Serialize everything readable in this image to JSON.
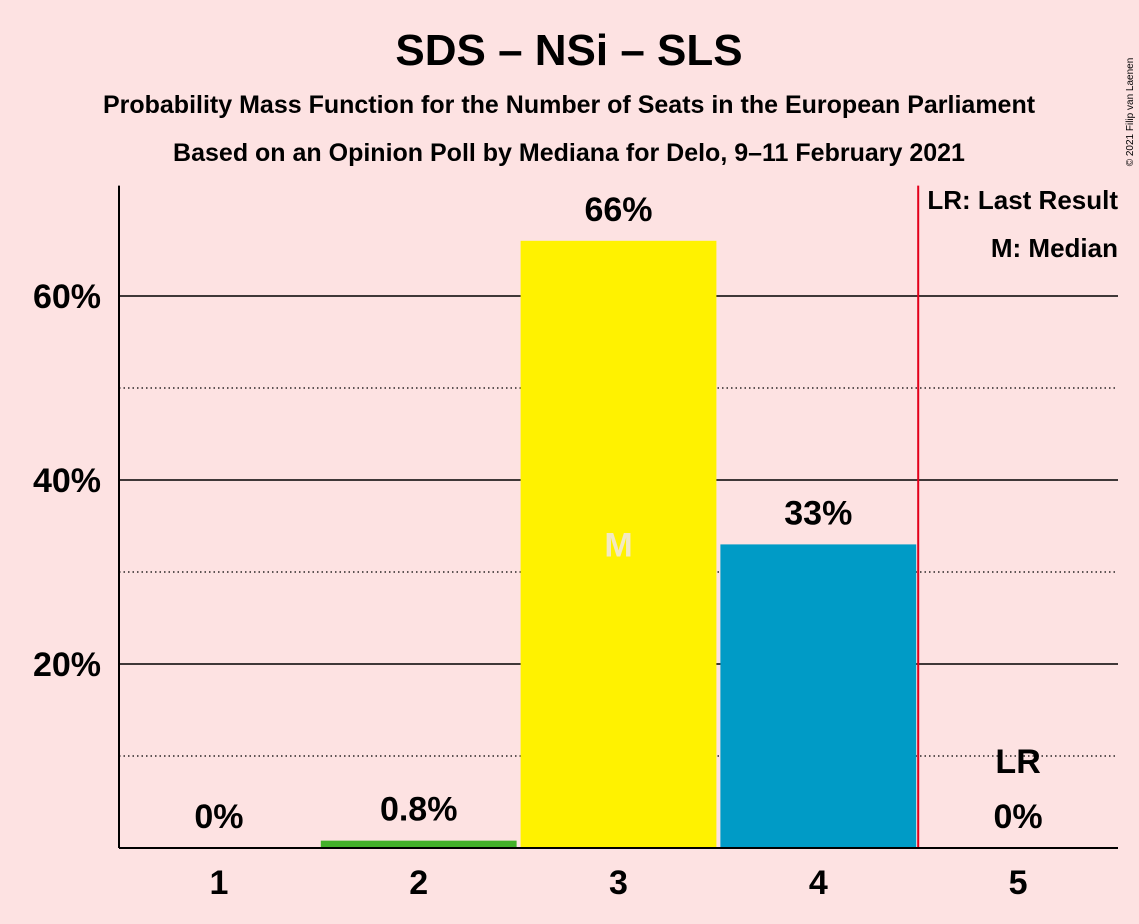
{
  "chart_data": {
    "type": "bar",
    "title": "SDS – NSi – SLS",
    "subtitle_1": "Probability Mass Function for the Number of Seats in the European Parliament",
    "subtitle_2": "Based on an Opinion Poll by Mediana for Delo, 9–11 February 2021",
    "categories": [
      "1",
      "2",
      "3",
      "4",
      "5"
    ],
    "values": [
      0,
      0.8,
      66,
      33,
      0
    ],
    "value_labels": [
      "0%",
      "0.8%",
      "66%",
      "33%",
      "0%"
    ],
    "bar_colors": [
      "#ffffff",
      "#43b02a",
      "#fff200",
      "#009bc6",
      "#ffffff"
    ],
    "ylim": [
      0,
      72
    ],
    "major_ticks": [
      20,
      40,
      60
    ],
    "major_tick_labels": [
      "20%",
      "40%",
      "60%"
    ],
    "minor_ticks": [
      10,
      30,
      50
    ],
    "median_index": 2,
    "median_marker": "M",
    "last_result_index": 4,
    "last_result_marker": "LR",
    "last_result_line_color": "#e3001b",
    "legend": [
      "LR: Last Result",
      "M: Median"
    ],
    "legend_position": "top-right",
    "grid": true,
    "copyright": "© 2021 Filip van Laenen"
  }
}
